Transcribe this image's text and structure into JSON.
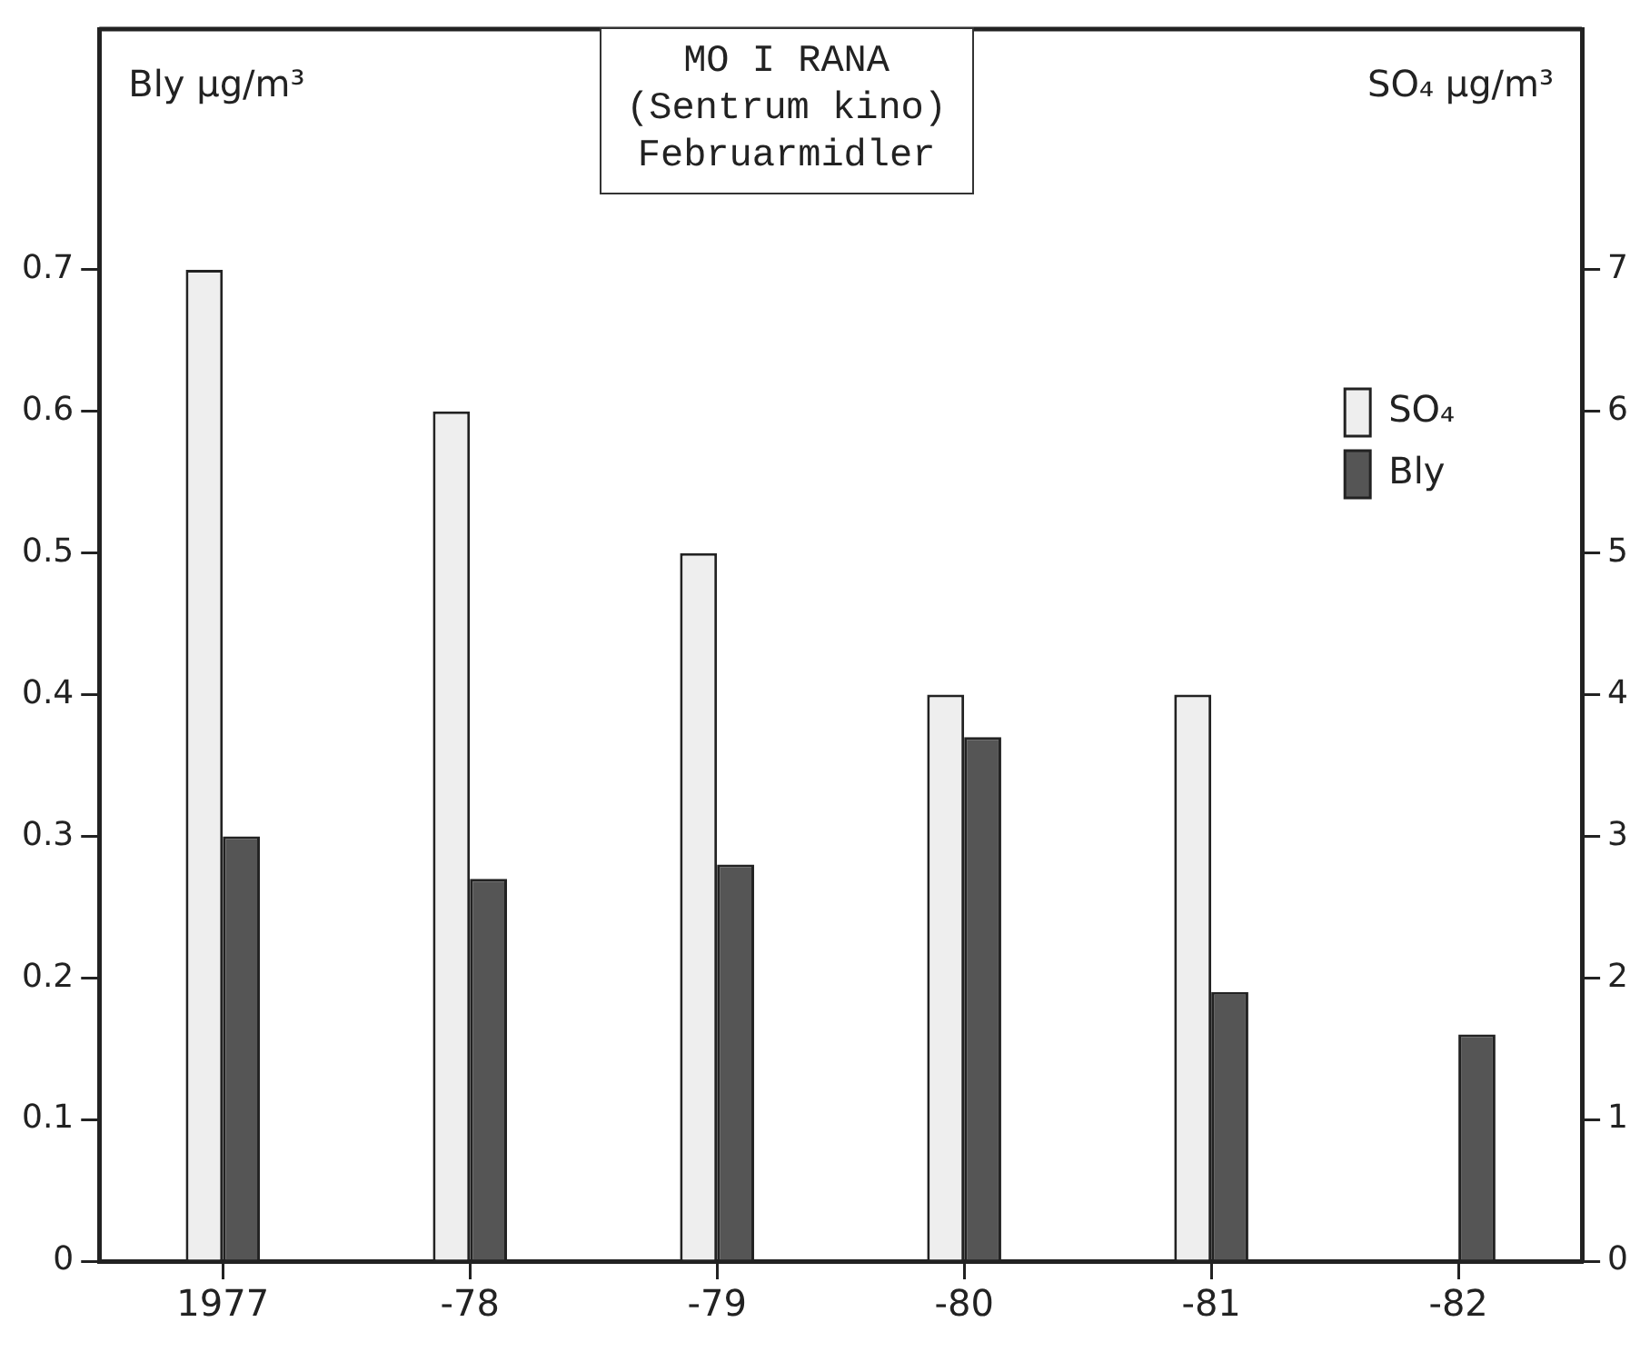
{
  "chart_data": {
    "type": "bar",
    "title": "MO I RANA",
    "subtitle": "(Sentrum kino)\nFebruarmidler",
    "ylabel": "Bly μg/m³",
    "y2label": "SO₄ μg/m³",
    "categories": [
      "1977",
      "-78",
      "-79",
      "-80",
      "-81",
      "-82"
    ],
    "series": [
      {
        "name": "SO₄",
        "color": "#eeeeee",
        "axis": "y2",
        "values": [
          7.0,
          6.0,
          5.0,
          4.0,
          4.0,
          null
        ]
      },
      {
        "name": "Bly",
        "color": "#555555",
        "values": [
          0.3,
          0.27,
          0.28,
          0.37,
          0.19,
          0.16
        ]
      }
    ],
    "ylim": [
      0,
      0.87
    ],
    "yticks": [
      0,
      0.1,
      0.2,
      0.3,
      0.4,
      0.5,
      0.6,
      0.7
    ],
    "y2lim": [
      0,
      8.7
    ],
    "y2ticks": [
      0,
      1,
      2,
      3,
      4,
      5,
      6,
      7
    ],
    "legend": "top right"
  }
}
